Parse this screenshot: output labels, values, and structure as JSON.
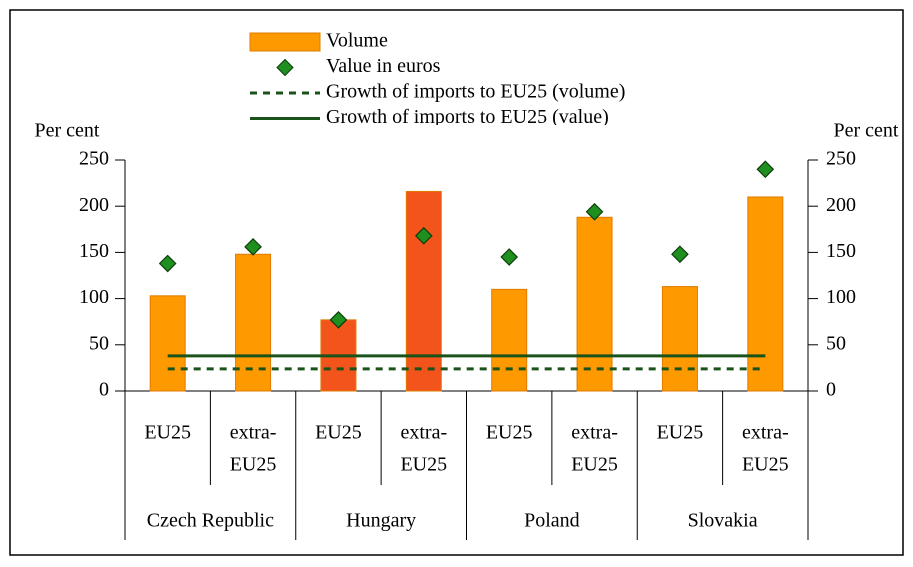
{
  "chart_data": {
    "type": "bar",
    "y_label": "Per cent",
    "y2_label": "Per cent",
    "ylim": [
      0,
      250
    ],
    "yticks": [
      0,
      50,
      100,
      150,
      200,
      250
    ],
    "y2lim": [
      0,
      250
    ],
    "y2ticks": [
      0,
      50,
      100,
      150,
      200,
      250
    ],
    "categories": [
      [
        "EU25"
      ],
      [
        "extra-",
        "EU25"
      ],
      [
        "EU25"
      ],
      [
        "extra-",
        "EU25"
      ],
      [
        "EU25"
      ],
      [
        "extra-",
        "EU25"
      ],
      [
        "EU25"
      ],
      [
        "extra-",
        "EU25"
      ]
    ],
    "groups": [
      "Czech Republic",
      "Hungary",
      "Poland",
      "Slovakia"
    ],
    "series": [
      {
        "name": "Volume",
        "type": "bar",
        "color": "#ff9900",
        "colors": [
          "#ff9900",
          "#ff9900",
          "#f2541b",
          "#f2541b",
          "#ff9900",
          "#ff9900",
          "#ff9900",
          "#ff9900"
        ],
        "values": [
          103,
          148,
          77,
          216,
          110,
          188,
          113,
          210
        ]
      },
      {
        "name": "Value in euros",
        "type": "marker",
        "color": "#1f8f1f",
        "values": [
          138,
          156,
          77,
          168,
          145,
          194,
          148,
          240
        ]
      },
      {
        "name": "Growth of imports to EU25 (volume)",
        "type": "line",
        "dashed": true,
        "color": "#1a531a",
        "values": [
          24,
          24,
          24,
          24,
          24,
          24,
          24,
          24
        ]
      },
      {
        "name": "Growth of imports to EU25 (value)",
        "type": "line",
        "dashed": false,
        "color": "#1a531a",
        "values": [
          38,
          38,
          38,
          38,
          38,
          38,
          38,
          38
        ]
      }
    ]
  }
}
